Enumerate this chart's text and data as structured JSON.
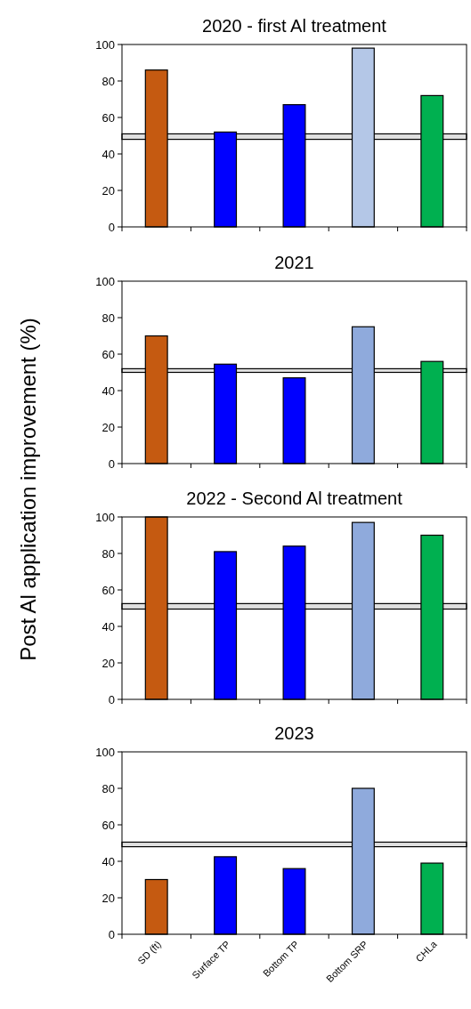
{
  "chart_data": [
    {
      "type": "bar",
      "title": "2020 - first Al treatment",
      "ylabel": "Post Al application improvement (%)",
      "categories": [
        null,
        null,
        null,
        null,
        null
      ],
      "values": [
        86,
        52,
        67,
        98,
        72
      ],
      "colors": [
        "#c55a11",
        "#0000ff",
        "#0000ff",
        "#b4c7e7",
        "#00b050"
      ],
      "ylim": [
        0,
        100
      ],
      "yticks": [
        0,
        20,
        40,
        60,
        80,
        100
      ],
      "bands": [
        {
          "axis": "y",
          "from": 48,
          "to": 51,
          "color": "#e0e0e0"
        }
      ],
      "tick_labels": "y"
    },
    {
      "type": "bar",
      "title": "2021",
      "categories": [
        null,
        null,
        null,
        null,
        null
      ],
      "values": [
        70,
        54.5,
        47,
        75,
        56
      ],
      "colors": [
        "#c55a11",
        "#0000ff",
        "#0000ff",
        "#8faadc",
        "#00b050"
      ],
      "ylim": [
        0,
        100
      ],
      "yticks": [
        0,
        20,
        40,
        60,
        80,
        100
      ],
      "bands": [
        {
          "axis": "y",
          "from": 50,
          "to": 52,
          "color": "#e0e0e0"
        }
      ],
      "tick_labels": "y"
    },
    {
      "type": "bar",
      "title": "2022 - Second Al treatment",
      "categories": [
        null,
        null,
        null,
        null,
        null
      ],
      "values": [
        100,
        81,
        84,
        97,
        90
      ],
      "colors": [
        "#c55a11",
        "#0000ff",
        "#0000ff",
        "#8faadc",
        "#00b050"
      ],
      "ylim": [
        0,
        100
      ],
      "yticks": [
        0,
        20,
        40,
        60,
        80,
        100
      ],
      "bands": [
        {
          "axis": "y",
          "from": 49.5,
          "to": 52.5,
          "color": "#e0e0e0"
        }
      ],
      "tick_labels": "y"
    },
    {
      "type": "bar",
      "title": "2023",
      "categories": [
        "SD (ft)",
        "Surface TP",
        "Bottom TP",
        "Bottom SRP",
        "CHLa"
      ],
      "values": [
        30,
        42.5,
        36,
        80,
        39
      ],
      "colors": [
        "#c55a11",
        "#0000ff",
        "#0000ff",
        "#8faadc",
        "#00b050"
      ],
      "ylim": [
        0,
        100
      ],
      "yticks": [
        0,
        20,
        40,
        60,
        80,
        100
      ],
      "bands": [
        {
          "axis": "y",
          "from": 48,
          "to": 50.5,
          "color": "#e0e0e0"
        }
      ]
    }
  ]
}
